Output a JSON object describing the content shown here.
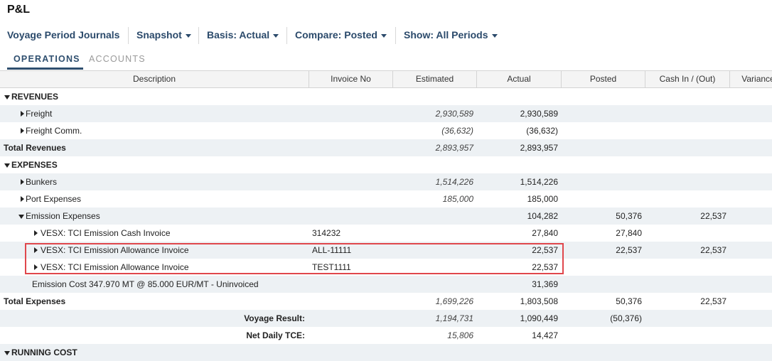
{
  "header": {
    "title": "P&L"
  },
  "toolbar": {
    "items": [
      "Voyage Period Journals",
      "Snapshot",
      "Basis: Actual",
      "Compare: Posted",
      "Show: All Periods"
    ]
  },
  "tabs": [
    "OPERATIONS",
    "ACCOUNTS"
  ],
  "table": {
    "columns": [
      "Description",
      "Invoice No",
      "Estimated",
      "Actual",
      "Posted",
      "Cash In / (Out)",
      "Variance"
    ],
    "rows": [
      {
        "description": "REVENUES"
      },
      {
        "description": "Freight",
        "estimated": "2,930,589",
        "actual": "2,930,589"
      },
      {
        "description": "Freight Comm.",
        "estimated": "(36,632)",
        "actual": "(36,632)"
      },
      {
        "description": "Total Revenues",
        "estimated": "2,893,957",
        "actual": "2,893,957"
      },
      {
        "description": "EXPENSES"
      },
      {
        "description": "Bunkers",
        "estimated": "1,514,226",
        "actual": "1,514,226"
      },
      {
        "description": "Port Expenses",
        "estimated": "185,000",
        "actual": "185,000"
      },
      {
        "description": "Emission Expenses",
        "actual": "104,282",
        "posted": "50,376",
        "cash_in_out": "22,537"
      },
      {
        "description": "VESX: TCI Emission Cash Invoice",
        "invoice_no": "314232",
        "actual": "27,840",
        "posted": "27,840"
      },
      {
        "description": "VESX: TCI Emission Allowance Invoice",
        "invoice_no": "ALL-11111",
        "actual": "22,537",
        "posted": "22,537",
        "cash_in_out": "22,537"
      },
      {
        "description": "VESX: TCI Emission Allowance Invoice",
        "invoice_no": "TEST1111",
        "actual": "22,537"
      },
      {
        "description": "Emission Cost 347.970 MT @ 85.000 EUR/MT - Uninvoiced",
        "actual": "31,369"
      },
      {
        "description": "Total Expenses",
        "estimated": "1,699,226",
        "actual": "1,803,508",
        "posted": "50,376",
        "cash_in_out": "22,537"
      },
      {
        "description": "Voyage Result:",
        "estimated": "1,194,731",
        "actual": "1,090,449",
        "posted": "(50,376)"
      },
      {
        "description": "Net Daily TCE:",
        "estimated": "15,806",
        "actual": "14,427"
      },
      {
        "description": "RUNNING COST"
      }
    ]
  }
}
